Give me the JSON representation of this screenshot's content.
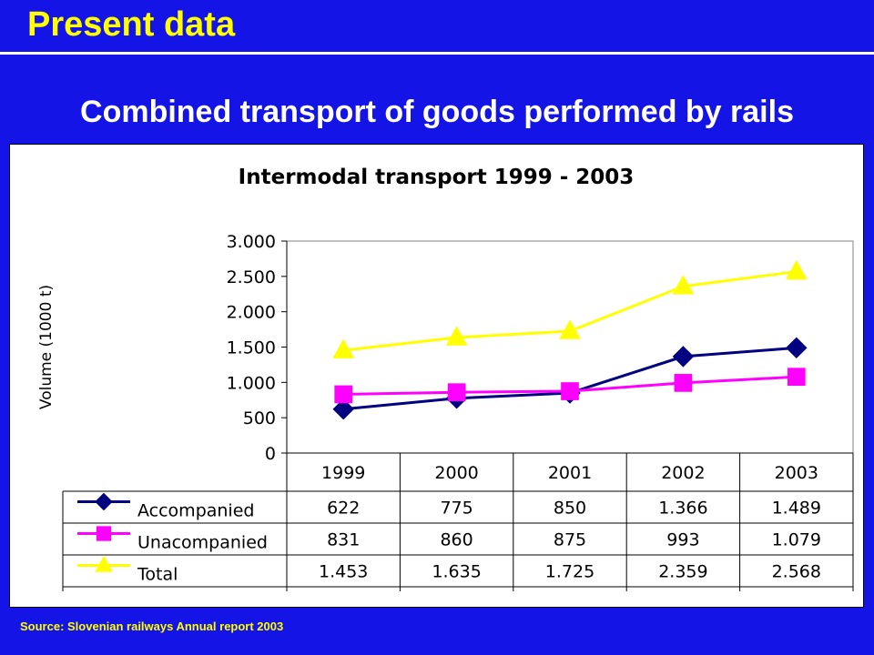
{
  "slide": {
    "title": "Present data",
    "subtitle": "Combined transport of goods performed by rails",
    "source": "Source: Slovenian railways Annual report 2003"
  },
  "colors": {
    "background": "#1414E6",
    "title": "#FFFF00",
    "subtitle": "#FFFFFF",
    "source": "#FFFF00"
  },
  "chart_data": {
    "type": "line",
    "title": "Intermodal transport 1999 - 2003",
    "xlabel": "",
    "ylabel": "Volume (1000 t)",
    "ylim": [
      0,
      3000
    ],
    "y_ticks": [
      0,
      500,
      1000,
      1500,
      2000,
      2500,
      3000
    ],
    "y_tick_labels": [
      "0",
      "500",
      "1.000",
      "1.500",
      "2.000",
      "2.500",
      "3.000"
    ],
    "categories": [
      "1999",
      "2000",
      "2001",
      "2002",
      "2003"
    ],
    "grid": false,
    "legend": "data-table",
    "series": [
      {
        "name": "Accompanied",
        "values": [
          622,
          775,
          850,
          1366,
          1489
        ],
        "labels": [
          "622",
          "775",
          "850",
          "1.366",
          "1.489"
        ],
        "color": "#000080",
        "marker": "diamond"
      },
      {
        "name": "Unacompanied",
        "values": [
          831,
          860,
          875,
          993,
          1079
        ],
        "labels": [
          "831",
          "860",
          "875",
          "993",
          "1.079"
        ],
        "color": "#FF00FF",
        "marker": "square"
      },
      {
        "name": "Total",
        "values": [
          1453,
          1635,
          1725,
          2359,
          2568
        ],
        "labels": [
          "1.453",
          "1.635",
          "1.725",
          "2.359",
          "2.568"
        ],
        "color": "#FFFF00",
        "marker": "triangle"
      }
    ]
  }
}
